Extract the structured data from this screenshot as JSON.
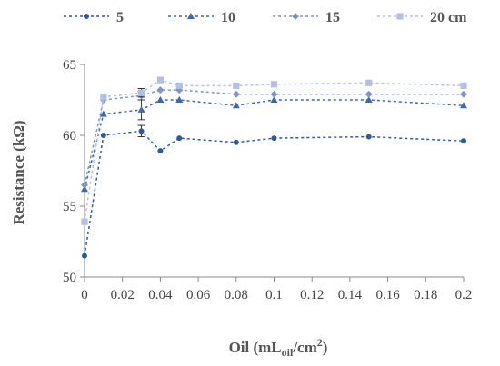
{
  "chart_data": {
    "type": "line",
    "x": [
      0,
      0.01,
      0.03,
      0.04,
      0.05,
      0.08,
      0.1,
      0.15,
      0.2
    ],
    "series": [
      {
        "name": "5",
        "color": "#2E5A9C",
        "marker": "circle",
        "values": [
          51.5,
          60.0,
          60.3,
          58.9,
          59.8,
          59.5,
          59.8,
          59.9,
          59.6
        ],
        "errors": [
          0,
          0,
          0.4,
          0,
          0,
          0,
          0,
          0,
          0
        ]
      },
      {
        "name": "10",
        "color": "#3F68AC",
        "marker": "triangle",
        "values": [
          56.2,
          61.5,
          61.8,
          62.5,
          62.5,
          62.1,
          62.5,
          62.5,
          62.1
        ],
        "errors": [
          0,
          0,
          0.7,
          0,
          0,
          0,
          0,
          0,
          0
        ]
      },
      {
        "name": "15",
        "color": "#7F94C8",
        "marker": "diamond",
        "values": [
          56.5,
          62.5,
          62.8,
          63.2,
          63.2,
          62.9,
          62.9,
          62.9,
          62.9
        ],
        "errors": [
          0,
          0,
          0.3,
          0,
          0,
          0,
          0,
          0,
          0
        ]
      },
      {
        "name": "20 cm",
        "color": "#B4C0E2",
        "marker": "square",
        "values": [
          53.9,
          62.7,
          63.0,
          63.9,
          63.5,
          63.5,
          63.6,
          63.7,
          63.5
        ],
        "errors": [
          0,
          0,
          0.3,
          0,
          0,
          0,
          0,
          0,
          0
        ]
      }
    ],
    "xlabel": {
      "main": "Oil (mL",
      "sub": "oil",
      "mid": "/cm",
      "sup": "2",
      "end": ")"
    },
    "ylabel": "Resistance (kΩ)",
    "xlim": [
      0,
      0.2
    ],
    "ylim": [
      50,
      65
    ],
    "xticks": [
      "0",
      "0.02",
      "0.04",
      "0.06",
      "0.08",
      "0.1",
      "0.12",
      "0.14",
      "0.16",
      "0.18",
      "0.2"
    ],
    "yticks": [
      "50",
      "55",
      "60",
      "65"
    ],
    "grid": false,
    "legend_position": "top"
  }
}
